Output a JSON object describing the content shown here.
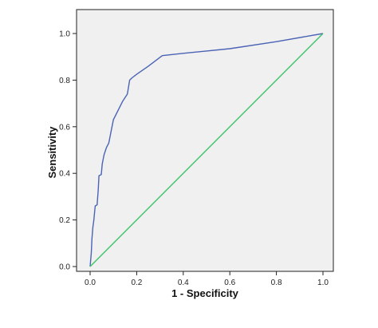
{
  "chart_data": {
    "type": "line",
    "title": "",
    "xlabel": "1 - Specificity",
    "ylabel": "Sensitivity",
    "xlim": [
      0,
      1
    ],
    "ylim": [
      0,
      1
    ],
    "grid": false,
    "xticks": [
      "0.0",
      "0.2",
      "0.4",
      "0.6",
      "0.8",
      "1.0"
    ],
    "yticks": [
      "0.0",
      "0.2",
      "0.4",
      "0.6",
      "0.8",
      "1.0"
    ],
    "plot_background": "#f0f0f0",
    "series": [
      {
        "color": "#4a63b5",
        "points": [
          [
            0.0,
            0.0
          ],
          [
            0.005,
            0.06
          ],
          [
            0.008,
            0.12
          ],
          [
            0.012,
            0.17
          ],
          [
            0.016,
            0.2
          ],
          [
            0.02,
            0.24
          ],
          [
            0.022,
            0.26
          ],
          [
            0.03,
            0.265
          ],
          [
            0.035,
            0.33
          ],
          [
            0.038,
            0.39
          ],
          [
            0.048,
            0.395
          ],
          [
            0.052,
            0.44
          ],
          [
            0.06,
            0.48
          ],
          [
            0.07,
            0.51
          ],
          [
            0.08,
            0.53
          ],
          [
            0.09,
            0.58
          ],
          [
            0.1,
            0.63
          ],
          [
            0.12,
            0.67
          ],
          [
            0.14,
            0.71
          ],
          [
            0.16,
            0.74
          ],
          [
            0.17,
            0.8
          ],
          [
            0.18,
            0.81
          ],
          [
            0.2,
            0.825
          ],
          [
            0.25,
            0.86
          ],
          [
            0.29,
            0.89
          ],
          [
            0.31,
            0.905
          ],
          [
            0.4,
            0.915
          ],
          [
            0.6,
            0.935
          ],
          [
            0.8,
            0.965
          ],
          [
            1.0,
            1.0
          ]
        ]
      },
      {
        "color": "#3ec36a",
        "points": [
          [
            0,
            0
          ],
          [
            1,
            1
          ]
        ]
      }
    ]
  }
}
